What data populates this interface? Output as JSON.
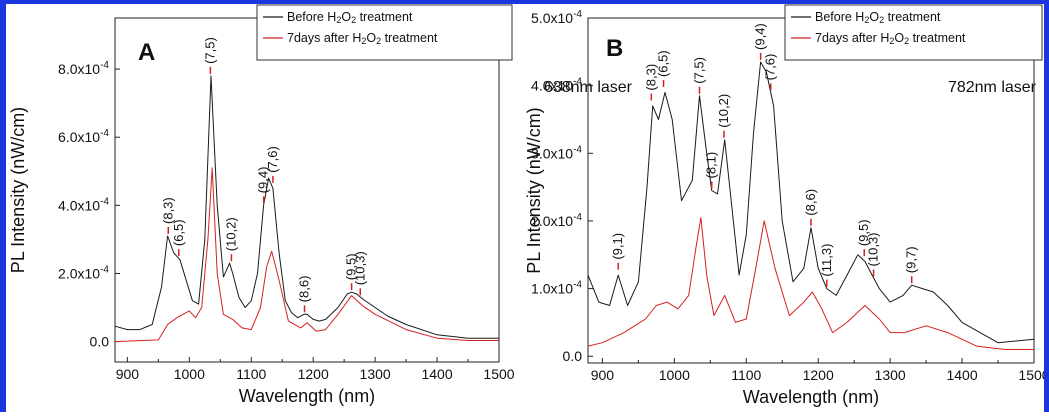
{
  "frame_color": "#1a36e0",
  "colors": {
    "before": "#1a1a1a",
    "after": "#d62020",
    "marker": "#d62020"
  },
  "chart_data": [
    {
      "type": "line",
      "panel_label": "A",
      "annotation": "638nm laser",
      "xlabel": "Wavelength (nm)",
      "ylabel": "PL Intensity (nW/cm)",
      "xlim": [
        880,
        1500
      ],
      "ylim": [
        -6e-05,
        0.00095
      ],
      "xticks": [
        900,
        1000,
        1100,
        1200,
        1300,
        1400,
        1500
      ],
      "xtick_labels": [
        "900",
        "1000",
        "1100",
        "1200",
        "1300",
        "1400",
        "1500"
      ],
      "yticks": [
        0,
        0.0002,
        0.0004,
        0.0006,
        0.0008
      ],
      "ytick_mantissa": [
        "0.0",
        "2.0x10",
        "4.0x10",
        "6.0x10",
        "8.0x10"
      ],
      "ytick_exponent": [
        "",
        "-4",
        "-4",
        "-4",
        "-4"
      ],
      "legend": [
        {
          "parts": [
            "Before H",
            "2",
            "O",
            "2",
            " treatment"
          ]
        },
        {
          "parts": [
            "7days after H",
            "2",
            "O",
            "2",
            " treatment"
          ]
        }
      ],
      "series": [
        {
          "name": "Before H2O2 treatment",
          "x": [
            880,
            900,
            920,
            940,
            955,
            965,
            975,
            985,
            995,
            1005,
            1015,
            1025,
            1035,
            1045,
            1055,
            1065,
            1070,
            1080,
            1090,
            1100,
            1110,
            1120,
            1128,
            1135,
            1145,
            1155,
            1165,
            1175,
            1185,
            1190,
            1200,
            1210,
            1220,
            1240,
            1255,
            1262,
            1270,
            1280,
            1300,
            1320,
            1350,
            1400,
            1450,
            1500
          ],
          "y": [
            4.5e-05,
            3.5e-05,
            3.5e-05,
            5e-05,
            0.00016,
            0.00031,
            0.00026,
            0.00024,
            0.00018,
            0.00012,
            0.00011,
            0.0003,
            0.00078,
            0.0004,
            0.00019,
            0.00023,
            0.0002,
            0.00013,
            0.0001,
            0.00012,
            0.0002,
            0.0004,
            0.00048,
            0.00045,
            0.00026,
            0.00012,
            8.5e-05,
            7e-05,
            8e-05,
            8e-05,
            6.5e-05,
            6e-05,
            6.5e-05,
            0.0001,
            0.00014,
            0.000145,
            0.00014,
            0.000125,
            0.0001,
            7.5e-05,
            5e-05,
            2e-05,
            1e-05,
            1e-05
          ]
        },
        {
          "name": "7days after H2O2 treatment",
          "x": [
            880,
            950,
            965,
            980,
            1000,
            1010,
            1020,
            1030,
            1037,
            1045,
            1055,
            1070,
            1085,
            1100,
            1115,
            1125,
            1133,
            1145,
            1160,
            1180,
            1190,
            1205,
            1220,
            1240,
            1262,
            1280,
            1300,
            1350,
            1400,
            1450,
            1500
          ],
          "y": [
            0.0,
            5e-06,
            5e-05,
            7e-05,
            9e-05,
            7e-05,
            0.0001,
            0.0003,
            0.00051,
            0.0002,
            8e-05,
            6.5e-05,
            4e-05,
            3.5e-05,
            0.0001,
            0.00022,
            0.000265,
            0.00018,
            6e-05,
            4e-05,
            5.5e-05,
            3e-05,
            3.5e-05,
            8e-05,
            0.000135,
            0.000105,
            8e-05,
            3.5e-05,
            1e-05,
            3e-06,
            3e-06
          ]
        }
      ],
      "peak_labels": [
        {
          "text": "(8,3)",
          "x": 966,
          "y": 0.00031
        },
        {
          "text": "(6,5)",
          "x": 983,
          "y": 0.000245
        },
        {
          "text": "(7,5)",
          "x": 1034,
          "y": 0.00078
        },
        {
          "text": "(10,2)",
          "x": 1068,
          "y": 0.00023
        },
        {
          "text": "(9,4)",
          "x": 1120,
          "y": 0.0004
        },
        {
          "text": "(7,6)",
          "x": 1135,
          "y": 0.00046
        },
        {
          "text": "(8,6)",
          "x": 1186,
          "y": 8e-05
        },
        {
          "text": "(9,5)",
          "x": 1262,
          "y": 0.000145
        },
        {
          "text": "(10,3)",
          "x": 1276,
          "y": 0.00013
        }
      ]
    },
    {
      "type": "line",
      "panel_label": "B",
      "annotation": "782nm laser",
      "xlabel": "Wavelength (nm)",
      "ylabel": "PL Intensity (nW/cm)",
      "xlim": [
        880,
        1500
      ],
      "ylim": [
        -1e-05,
        0.0005
      ],
      "xticks": [
        900,
        1000,
        1100,
        1200,
        1300,
        1400,
        1500
      ],
      "xtick_labels": [
        "900",
        "1000",
        "1100",
        "1200",
        "1300",
        "1400",
        "1500"
      ],
      "yticks": [
        0,
        0.0001,
        0.0002,
        0.0003,
        0.0004,
        0.0005
      ],
      "ytick_mantissa": [
        "0.0",
        "1.0x10",
        "2.0x10",
        "3.0x10",
        "4.0x10",
        "5.0x10"
      ],
      "ytick_exponent": [
        "",
        "-4",
        "-4",
        "-4",
        "-4",
        "-4"
      ],
      "legend": [
        {
          "parts": [
            "Before H",
            "2",
            "O",
            "2",
            " treatment"
          ]
        },
        {
          "parts": [
            "7days after H",
            "2",
            "O",
            "2",
            " treatment"
          ]
        }
      ],
      "series": [
        {
          "name": "Before H2O2 treatment",
          "x": [
            880,
            895,
            910,
            922,
            935,
            950,
            962,
            970,
            978,
            987,
            997,
            1010,
            1025,
            1035,
            1045,
            1052,
            1060,
            1070,
            1080,
            1090,
            1100,
            1110,
            1120,
            1128,
            1138,
            1150,
            1165,
            1180,
            1190,
            1200,
            1212,
            1225,
            1240,
            1255,
            1265,
            1275,
            1285,
            1300,
            1318,
            1330,
            1345,
            1360,
            1380,
            1400,
            1450,
            1500
          ],
          "y": [
            0.00012,
            8e-05,
            7.5e-05,
            0.00012,
            7.5e-05,
            0.00011,
            0.00025,
            0.00037,
            0.00035,
            0.00039,
            0.00035,
            0.00023,
            0.00026,
            0.000385,
            0.0003,
            0.000245,
            0.00024,
            0.00032,
            0.00022,
            0.00012,
            0.00018,
            0.00033,
            0.000435,
            0.00042,
            0.00037,
            0.0002,
            0.00011,
            0.00013,
            0.00019,
            0.00013,
            0.0001,
            9e-05,
            0.00012,
            0.00015,
            0.00014,
            0.00012,
            0.0001,
            8e-05,
            9e-05,
            0.000105,
            0.0001,
            9.5e-05,
            7.5e-05,
            5e-05,
            2e-05,
            2.5e-05
          ]
        },
        {
          "name": "7days after H2O2 treatment",
          "x": [
            880,
            900,
            930,
            960,
            975,
            990,
            1005,
            1020,
            1030,
            1037,
            1045,
            1055,
            1070,
            1085,
            1100,
            1115,
            1125,
            1140,
            1160,
            1180,
            1192,
            1205,
            1220,
            1240,
            1265,
            1285,
            1300,
            1320,
            1350,
            1380,
            1420,
            1460,
            1500
          ],
          "y": [
            1.5e-05,
            2e-05,
            3.5e-05,
            5.5e-05,
            7.5e-05,
            8e-05,
            7e-05,
            9e-05,
            0.00016,
            0.000205,
            0.00012,
            6e-05,
            9e-05,
            5e-05,
            5.5e-05,
            0.00014,
            0.0002,
            0.00013,
            6e-05,
            8e-05,
            9.5e-05,
            7e-05,
            3.5e-05,
            5e-05,
            7.5e-05,
            5.5e-05,
            3.5e-05,
            3.5e-05,
            4.5e-05,
            3.5e-05,
            1.5e-05,
            1e-05,
            1e-05
          ]
        }
      ],
      "peak_labels": [
        {
          "text": "(9,1)",
          "x": 922,
          "y": 0.000125
        },
        {
          "text": "(8,3)",
          "x": 968,
          "y": 0.000375
        },
        {
          "text": "(6,5)",
          "x": 985,
          "y": 0.000395
        },
        {
          "text": "(7,5)",
          "x": 1035,
          "y": 0.000385
        },
        {
          "text": "(8,1)",
          "x": 1052,
          "y": 0.000245
        },
        {
          "text": "(10,2)",
          "x": 1069,
          "y": 0.00032
        },
        {
          "text": "(9,4)",
          "x": 1120,
          "y": 0.000435
        },
        {
          "text": "(7,6)",
          "x": 1134,
          "y": 0.00039
        },
        {
          "text": "(8,6)",
          "x": 1190,
          "y": 0.00019
        },
        {
          "text": "(11,3)",
          "x": 1212,
          "y": 0.0001
        },
        {
          "text": "(9,5)",
          "x": 1264,
          "y": 0.000145
        },
        {
          "text": "(10,3)",
          "x": 1277,
          "y": 0.000115
        },
        {
          "text": "(9,7)",
          "x": 1330,
          "y": 0.000105
        }
      ]
    }
  ]
}
